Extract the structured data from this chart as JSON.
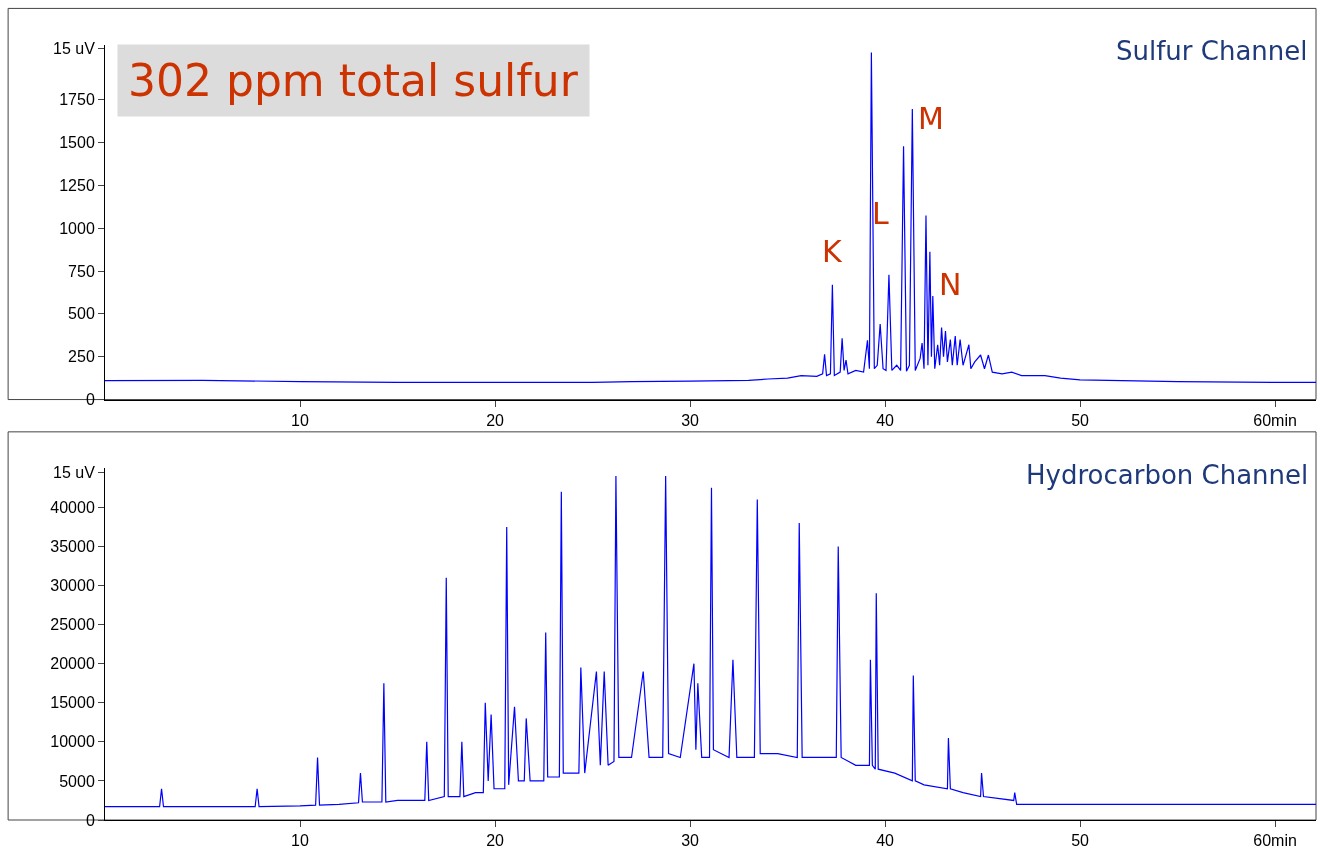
{
  "chart_data": [
    {
      "type": "line",
      "title": "Sulfur Channel",
      "ylabel": "15 uV",
      "xlim": [
        0,
        62.1
      ],
      "xticks": [
        10,
        20,
        30,
        40,
        50,
        {
          "value": 60,
          "label": "60min"
        }
      ],
      "ylim": [
        0,
        2070
      ],
      "yticks": [
        0,
        250,
        500,
        750,
        1000,
        1250,
        1500,
        1750,
        {
          "value": 2050,
          "label": null
        }
      ],
      "grid": false,
      "series": [
        {
          "color": "#0000ff",
          "x": [
            0,
            5,
            10,
            15,
            20,
            25,
            27,
            30,
            33,
            34,
            35,
            35.7,
            36.5,
            36.8,
            36.9,
            37.0,
            37.2,
            37.3,
            37.4,
            37.7,
            37.8,
            37.9,
            38.0,
            38.1,
            38.5,
            38.9,
            39.1,
            39.2,
            39.3,
            39.45,
            39.6,
            39.75,
            39.9,
            40.05,
            40.2,
            40.35,
            40.6,
            40.8,
            40.95,
            41.1,
            41.25,
            41.4,
            41.55,
            41.8,
            41.9,
            42.0,
            42.1,
            42.2,
            42.3,
            42.38,
            42.45,
            42.55,
            42.7,
            42.8,
            42.9,
            43.0,
            43.1,
            43.2,
            43.35,
            43.45,
            43.6,
            43.7,
            43.85,
            44.0,
            44.3,
            44.4,
            44.6,
            44.9,
            45.1,
            45.3,
            45.5,
            46,
            46.5,
            47,
            48.2,
            49,
            50,
            55,
            60,
            62.1
          ],
          "values": [
            110,
            112,
            105,
            100,
            100,
            100,
            105,
            108,
            112,
            120,
            125,
            140,
            135,
            150,
            264,
            140,
            150,
            670,
            140,
            160,
            358,
            170,
            230,
            150,
            170,
            160,
            346,
            180,
            2025,
            180,
            200,
            440,
            180,
            170,
            728,
            170,
            200,
            170,
            1479,
            165,
            200,
            1696,
            170,
            240,
            330,
            180,
            1074,
            200,
            863,
            250,
            604,
            180,
            320,
            200,
            420,
            250,
            400,
            220,
            350,
            200,
            370,
            200,
            350,
            200,
            320,
            180,
            220,
            260,
            180,
            260,
            160,
            150,
            160,
            140,
            140,
            125,
            115,
            105,
            100,
            100
          ]
        }
      ],
      "annotations": [
        "302 ppm total sulfur",
        {
          "text": "K",
          "x": 37.3,
          "y": 670
        },
        {
          "text": "L",
          "x": 40.2,
          "y": 728
        },
        {
          "text": "M",
          "x": 41.4,
          "y": 1696
        },
        {
          "text": "N",
          "x": 42.45,
          "y": 604
        }
      ]
    },
    {
      "type": "line",
      "title": "Hydrocarbon Channel",
      "ylabel": "15 uV",
      "xlim": [
        0,
        62.1
      ],
      "xticks": [
        10,
        20,
        30,
        40,
        50,
        {
          "value": 60,
          "label": "60min"
        }
      ],
      "ylim": [
        0,
        45000
      ],
      "yticks": [
        0,
        5000,
        10000,
        15000,
        20000,
        25000,
        30000,
        35000,
        40000,
        {
          "value": 44500,
          "label": null
        }
      ],
      "grid": false,
      "series": [
        {
          "color": "#0000ff",
          "x": [
            0,
            2.8,
            2.9,
            3.0,
            5,
            7.7,
            7.8,
            7.9,
            10,
            10.8,
            10.9,
            11.0,
            12,
            13.0,
            13.1,
            13.2,
            14.2,
            14.3,
            14.4,
            15,
            16.4,
            16.5,
            16.6,
            17.4,
            17.5,
            17.6,
            18.2,
            18.3,
            18.4,
            19.0,
            19.4,
            19.5,
            19.65,
            19.8,
            19.95,
            20.5,
            20.6,
            20.7,
            21.0,
            21.2,
            21.5,
            21.6,
            21.8,
            22.5,
            22.6,
            22.7,
            23.3,
            23.4,
            23.5,
            24.3,
            24.4,
            24.6,
            25.2,
            25.4,
            25.6,
            25.8,
            26.1,
            26.2,
            26.35,
            27.0,
            27.6,
            27.9,
            28.6,
            28.75,
            28.9,
            29.5,
            30.2,
            30.3,
            30.4,
            30.6,
            31.0,
            31.1,
            31.2,
            32.0,
            32.2,
            32.4,
            33.3,
            33.45,
            33.6,
            34.5,
            35.5,
            35.6,
            35.75,
            36.5,
            37.5,
            37.6,
            37.75,
            38.5,
            39.2,
            39.25,
            39.35,
            39.5,
            39.55,
            39.65,
            40.5,
            41.4,
            41.45,
            41.55,
            42,
            43.2,
            43.25,
            43.35,
            44,
            44.9,
            44.95,
            45.05,
            46.6,
            46.65,
            46.75,
            48,
            52,
            56,
            62.1
          ],
          "values": [
            1700,
            1700,
            4000,
            1700,
            1700,
            1700,
            4000,
            1700,
            1800,
            1900,
            8000,
            1900,
            2000,
            2200,
            6000,
            2300,
            2300,
            17500,
            2300,
            2500,
            2500,
            10000,
            2500,
            3000,
            31000,
            3000,
            3000,
            10000,
            3000,
            3500,
            3500,
            15000,
            5000,
            13500,
            4000,
            4000,
            37500,
            4500,
            14500,
            5000,
            5000,
            13000,
            5000,
            5000,
            24000,
            5500,
            5500,
            42000,
            6000,
            6000,
            19500,
            6000,
            19000,
            7000,
            19000,
            7000,
            7500,
            44000,
            8000,
            8000,
            19000,
            8000,
            8000,
            44000,
            8500,
            8000,
            20000,
            9000,
            17500,
            8000,
            8000,
            42500,
            9000,
            8000,
            20500,
            8000,
            8000,
            41000,
            8500,
            8500,
            8000,
            38000,
            8000,
            8000,
            8000,
            35000,
            8000,
            7000,
            7000,
            20500,
            7000,
            6500,
            29000,
            6500,
            6000,
            5000,
            18500,
            5000,
            4500,
            4000,
            10500,
            4000,
            3500,
            3000,
            6000,
            3000,
            2500,
            3500,
            2000,
            2000,
            2000,
            2000,
            2000
          ]
        }
      ]
    }
  ]
}
